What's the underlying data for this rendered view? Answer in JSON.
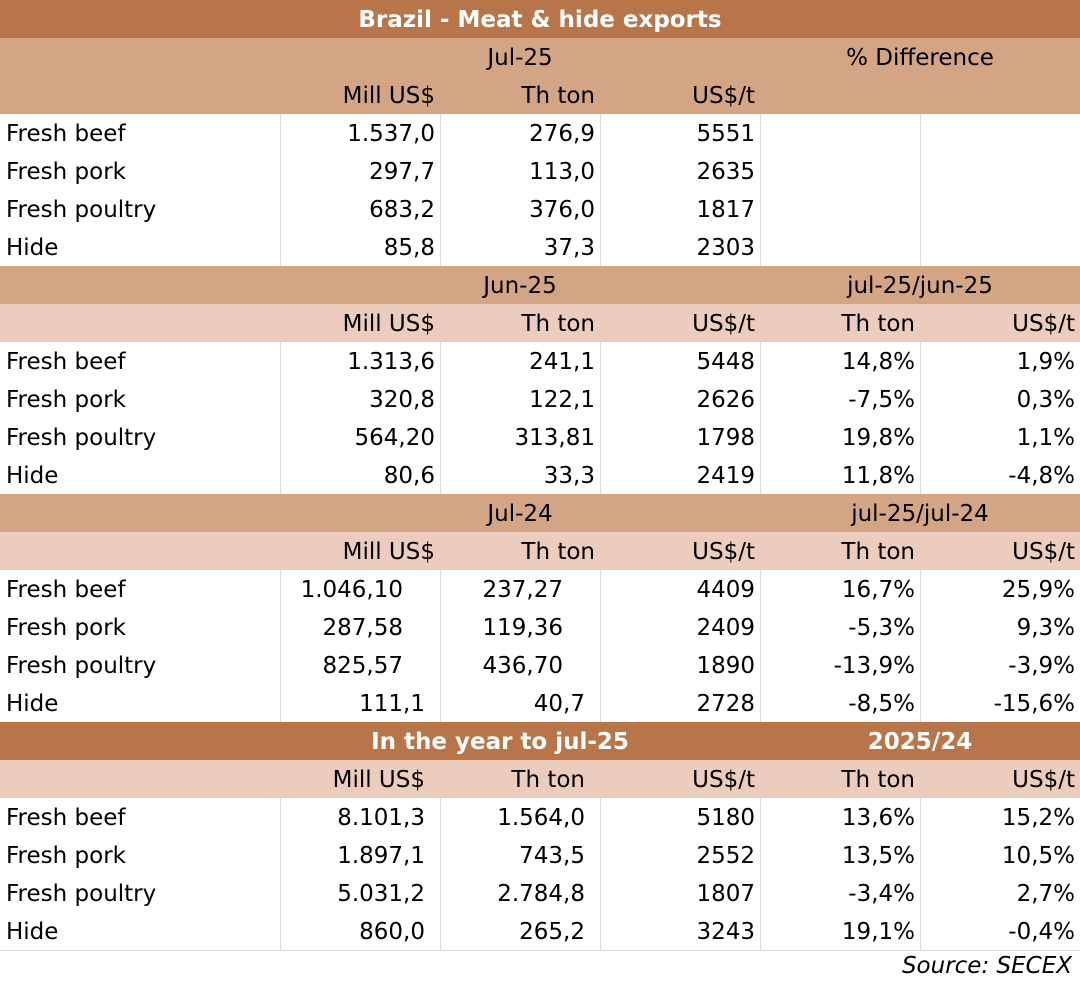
{
  "title": "Brazil - Meat & hide exports",
  "section1": {
    "period": "Jul-25",
    "diff_label": "% Difference",
    "headers": [
      "Mill US$",
      "Th ton",
      "US$/t"
    ],
    "rows": [
      {
        "name": "Fresh beef",
        "mill": "1.537,0",
        "ton": "276,9",
        "price": "5551"
      },
      {
        "name": "Fresh pork",
        "mill": "297,7",
        "ton": "113,0",
        "price": "2635"
      },
      {
        "name": "Fresh poultry",
        "mill": "683,2",
        "ton": "376,0",
        "price": "1817"
      },
      {
        "name": "Hide",
        "mill": "85,8",
        "ton": "37,3",
        "price": "2303"
      }
    ]
  },
  "section2": {
    "period": "Jun-25",
    "diff_label": "jul-25/jun-25",
    "headers": [
      "Mill US$",
      "Th ton",
      "US$/t",
      "Th ton",
      "US$/t"
    ],
    "rows": [
      {
        "name": "Fresh beef",
        "mill": "1.313,6",
        "ton": "241,1",
        "price": "5448",
        "d_ton": "14,8%",
        "d_price": "1,9%"
      },
      {
        "name": "Fresh pork",
        "mill": "320,8",
        "ton": "122,1",
        "price": "2626",
        "d_ton": "-7,5%",
        "d_price": "0,3%"
      },
      {
        "name": "Fresh poultry",
        "mill": "564,20",
        "ton": "313,81",
        "price": "1798",
        "d_ton": "19,8%",
        "d_price": "1,1%"
      },
      {
        "name": "Hide",
        "mill": "80,6",
        "ton": "33,3",
        "price": "2419",
        "d_ton": "11,8%",
        "d_price": "-4,8%"
      }
    ]
  },
  "section3": {
    "period": "Jul-24",
    "diff_label": "jul-25/jul-24",
    "headers": [
      "Mill US$",
      "Th ton",
      "US$/t",
      "Th ton",
      "US$/t"
    ],
    "rows": [
      {
        "name": "Fresh beef",
        "mill": "1.046,10",
        "ton": "237,27",
        "price": "4409",
        "d_ton": "16,7%",
        "d_price": "25,9%"
      },
      {
        "name": "Fresh pork",
        "mill": "287,58",
        "ton": "119,36",
        "price": "2409",
        "d_ton": "-5,3%",
        "d_price": "9,3%"
      },
      {
        "name": "Fresh poultry",
        "mill": "825,57",
        "ton": "436,70",
        "price": "1890",
        "d_ton": "-13,9%",
        "d_price": "-3,9%"
      },
      {
        "name": "Hide",
        "mill": "111,1",
        "ton": "40,7",
        "price": "2728",
        "d_ton": "-8,5%",
        "d_price": "-15,6%"
      }
    ]
  },
  "section4": {
    "period": "In the year to jul-25",
    "diff_label": "2025/24",
    "headers": [
      "Mill US$",
      "Th ton",
      "US$/t",
      "Th ton",
      "US$/t"
    ],
    "rows": [
      {
        "name": "Fresh beef",
        "mill": "8.101,3",
        "ton": "1.564,0",
        "price": "5180",
        "d_ton": "13,6%",
        "d_price": "15,2%"
      },
      {
        "name": "Fresh pork",
        "mill": "1.897,1",
        "ton": "743,5",
        "price": "2552",
        "d_ton": "13,5%",
        "d_price": "10,5%"
      },
      {
        "name": "Fresh poultry",
        "mill": "5.031,2",
        "ton": "2.784,8",
        "price": "1807",
        "d_ton": "-3,4%",
        "d_price": "2,7%"
      },
      {
        "name": "Hide",
        "mill": "860,0",
        "ton": "265,2",
        "price": "3243",
        "d_ton": "19,1%",
        "d_price": "-0,4%"
      }
    ]
  },
  "source": "Source: SECEX",
  "colors": {
    "title_bg": "#b8754a",
    "head_dark": "#d4a585",
    "head_light": "#eccdbd"
  }
}
